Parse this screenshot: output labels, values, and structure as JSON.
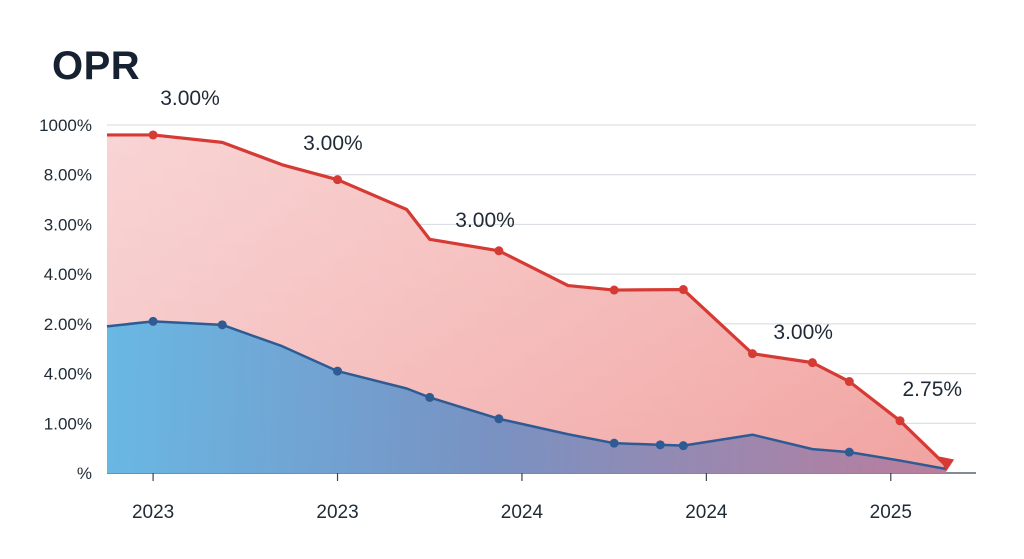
{
  "chart_data": {
    "type": "area",
    "title": "OPR",
    "y_tick_labels": [
      "1000%",
      "8.00%",
      "3.00%",
      "4.00%",
      "2.00%",
      "4.00%",
      "1.00%",
      "%"
    ],
    "x_tick_labels": [
      "2023",
      "2023",
      "2024",
      "2024",
      "2025"
    ],
    "ylim": [
      0,
      7
    ],
    "xlim": [
      0,
      18
    ],
    "grid": true,
    "legend": "none",
    "series": [
      {
        "color": "#d63a34",
        "x": [
          0,
          1,
          2.5,
          3.8,
          5,
          6.5,
          7,
          8.5,
          10,
          11,
          12.5,
          14,
          15.3,
          16.1,
          17.2,
          18.2
        ],
        "values": [
          6.8,
          6.8,
          6.65,
          6.2,
          5.9,
          5.3,
          4.7,
          4.47,
          3.77,
          3.68,
          3.69,
          2.4,
          2.22,
          1.84,
          1.05,
          0.15
        ],
        "markers": [
          1,
          5,
          8.5,
          11,
          12.5,
          14,
          15.3,
          16.1,
          17.2,
          18.2
        ],
        "end_arrow": true
      },
      {
        "color": "#2e5b93",
        "x": [
          0,
          1,
          2.5,
          3.8,
          5,
          6.5,
          7,
          8.5,
          10,
          11,
          12.5,
          14,
          15.3,
          16.1,
          17.2,
          18.2
        ],
        "values": [
          2.95,
          3.05,
          2.98,
          2.55,
          2.05,
          1.7,
          1.52,
          1.09,
          0.78,
          0.6,
          0.55,
          0.77,
          0.48,
          0.42,
          0.25,
          0.08
        ],
        "markers": [
          1,
          2.5,
          5,
          7,
          8.5,
          11,
          12,
          12.5,
          16.1
        ]
      }
    ],
    "annotations": [
      {
        "text": "3.00%",
        "x": 1.8,
        "y": 7.4
      },
      {
        "text": "3.00%",
        "x": 4.9,
        "y": 6.5
      },
      {
        "text": "3.00%",
        "x": 8.2,
        "y": 4.95
      },
      {
        "text": "3.00%",
        "x": 15.1,
        "y": 2.7
      },
      {
        "text": "2.75%",
        "x": 17.9,
        "y": 1.55
      }
    ],
    "colors": {
      "red_line": "#d63a34",
      "blue_line": "#2e5b93",
      "fill_top": "#f2b8b6",
      "fill_left": "#5aaedd"
    }
  }
}
